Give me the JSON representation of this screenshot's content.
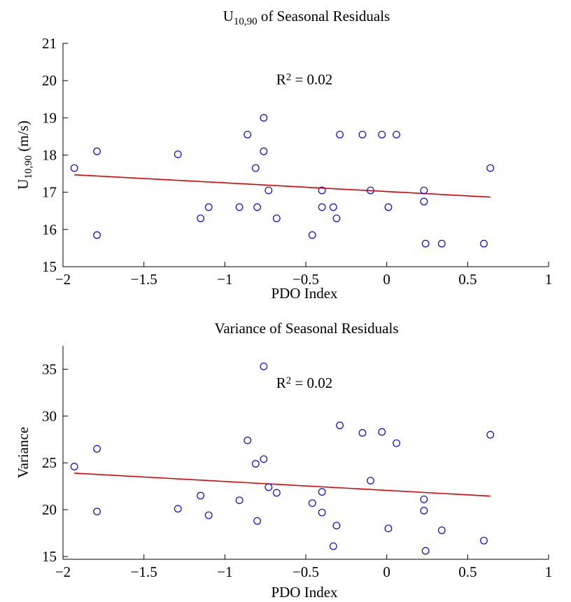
{
  "colors": {
    "points": "#0000ff",
    "fit": "#e00000",
    "axes": "#000000"
  },
  "chart_data": [
    {
      "type": "scatter",
      "title": {
        "base": "U",
        "sub": "10,90",
        "rest": " of Seasonal Residuals"
      },
      "xlabel": "PDO Index",
      "ylabel": {
        "base": "U",
        "sub": "10,90",
        "rest": " (m/s)"
      },
      "annotation": {
        "base": "R",
        "sup": "2",
        "rest": " = 0.02"
      },
      "annotation_pos": {
        "x": -0.5,
        "y": 19.9
      },
      "xlim": [
        -2,
        1
      ],
      "ylim": [
        15,
        21
      ],
      "xticks": [
        -2,
        -1.5,
        -1,
        -0.5,
        0,
        0.5,
        1
      ],
      "xticklabels": [
        "−2",
        "−1.5",
        "−1",
        "−0.5",
        "0",
        "0.5",
        "1"
      ],
      "yticks": [
        15,
        16,
        17,
        18,
        19,
        20,
        21
      ],
      "yticklabels": [
        "15",
        "16",
        "17",
        "18",
        "19",
        "20",
        "21"
      ],
      "grid": false,
      "points": {
        "x": [
          -1.93,
          -1.79,
          -1.79,
          -1.29,
          -1.15,
          -1.1,
          -0.91,
          -0.86,
          -0.81,
          -0.8,
          -0.76,
          -0.76,
          -0.73,
          -0.68,
          -0.46,
          -0.4,
          -0.4,
          -0.33,
          -0.31,
          -0.29,
          -0.15,
          -0.1,
          -0.03,
          0.01,
          0.06,
          0.23,
          0.23,
          0.24,
          0.34,
          0.6,
          0.64
        ],
        "y": [
          17.65,
          15.85,
          18.1,
          18.02,
          16.3,
          16.6,
          16.6,
          18.55,
          17.65,
          16.6,
          19.0,
          18.1,
          17.05,
          16.3,
          15.85,
          17.05,
          16.6,
          16.6,
          16.3,
          18.55,
          18.55,
          17.05,
          18.55,
          16.6,
          18.55,
          17.05,
          16.75,
          15.62,
          15.62,
          15.62,
          17.65
        ]
      },
      "fit": {
        "x": [
          -1.93,
          0.64
        ],
        "y": [
          17.47,
          16.87
        ]
      }
    },
    {
      "type": "scatter",
      "title": {
        "base": "Variance of Seasonal Residuals",
        "sub": "",
        "rest": ""
      },
      "xlabel": "PDO Index",
      "ylabel": {
        "base": "Variance",
        "sub": "",
        "rest": ""
      },
      "annotation": {
        "base": "R",
        "sup": "2",
        "rest": " = 0.02"
      },
      "annotation_pos": {
        "x": -0.5,
        "y": 33.0
      },
      "xlim": [
        -2,
        1
      ],
      "ylim": [
        14.7,
        37.5
      ],
      "xticks": [
        -2,
        -1.5,
        -1,
        -0.5,
        0,
        0.5,
        1
      ],
      "xticklabels": [
        "−2",
        "−1.5",
        "−1",
        "−0.5",
        "0",
        "0.5",
        "1"
      ],
      "yticks": [
        15,
        20,
        25,
        30,
        35
      ],
      "yticklabels": [
        "15",
        "20",
        "25",
        "30",
        "35"
      ],
      "grid": false,
      "points": {
        "x": [
          -1.93,
          -1.79,
          -1.79,
          -1.29,
          -1.15,
          -1.1,
          -0.91,
          -0.86,
          -0.81,
          -0.8,
          -0.76,
          -0.76,
          -0.73,
          -0.68,
          -0.46,
          -0.4,
          -0.4,
          -0.33,
          -0.31,
          -0.29,
          -0.15,
          -0.1,
          -0.03,
          0.01,
          0.06,
          0.23,
          0.23,
          0.24,
          0.34,
          0.6,
          0.64
        ],
        "y": [
          24.6,
          19.8,
          26.5,
          20.1,
          21.5,
          19.4,
          21.0,
          27.4,
          24.9,
          18.8,
          35.3,
          25.4,
          22.4,
          21.8,
          20.7,
          21.9,
          19.7,
          16.1,
          18.3,
          29.0,
          28.2,
          23.1,
          28.3,
          18.0,
          27.1,
          21.1,
          19.9,
          15.6,
          17.8,
          16.7,
          28.0
        ]
      },
      "fit": {
        "x": [
          -1.93,
          0.64
        ],
        "y": [
          23.9,
          21.45
        ]
      }
    }
  ]
}
